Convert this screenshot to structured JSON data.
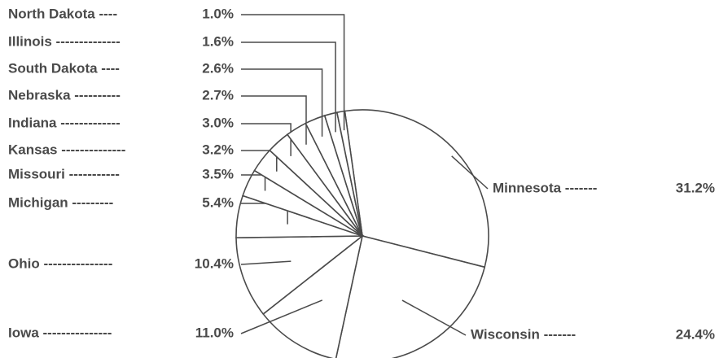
{
  "chart_data": {
    "type": "pie",
    "categories": [
      "Minnesota -------",
      "Wisconsin -------",
      "Iowa ---------------",
      "Ohio ---------------",
      "Michigan ---------",
      "Missouri -----------",
      "Kansas --------------",
      "Indiana -------------",
      "Nebraska ----------",
      "South Dakota ----",
      "Illinois --------------",
      "North Dakota ----"
    ],
    "values": [
      31.2,
      24.4,
      11.0,
      10.4,
      5.4,
      3.5,
      3.2,
      3.0,
      2.7,
      2.6,
      1.6,
      1.0
    ],
    "value_labels": [
      "31.2%",
      "24.4%",
      "11.0%",
      "10.4%",
      "5.4%",
      "3.5%",
      "3.2%",
      "3.0%",
      "2.7%",
      "2.6%",
      "1.6%",
      "1.0%"
    ],
    "color": "#ffffff"
  }
}
